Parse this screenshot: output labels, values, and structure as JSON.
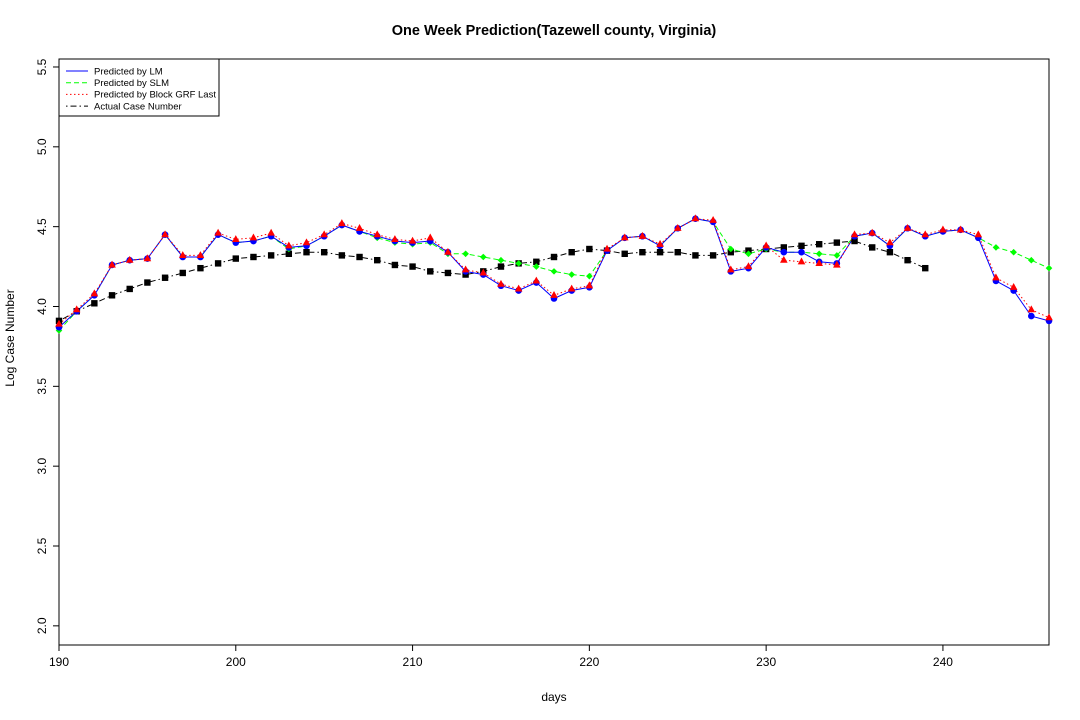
{
  "chart_data": {
    "type": "line",
    "title": "One Week Prediction(Tazewell county, Virginia)",
    "xlabel": "days",
    "ylabel": "Log Case Number",
    "xlim": [
      190,
      246
    ],
    "ylim": [
      1.88,
      5.55
    ],
    "xticks": [
      190,
      200,
      210,
      220,
      230,
      240
    ],
    "yticks": [
      2.0,
      2.5,
      3.0,
      3.5,
      4.0,
      4.5,
      5.0,
      5.5
    ],
    "grid": false,
    "legend_position": "top-left",
    "series": [
      {
        "name": "Predicted by LM",
        "color": "#0000ff",
        "line_style": "solid",
        "marker": "circle",
        "x": [
          190,
          191,
          192,
          193,
          194,
          195,
          196,
          197,
          198,
          199,
          200,
          201,
          202,
          203,
          204,
          205,
          206,
          207,
          208,
          209,
          210,
          211,
          212,
          213,
          214,
          215,
          216,
          217,
          218,
          219,
          220,
          221,
          222,
          223,
          224,
          225,
          226,
          227,
          228,
          229,
          230,
          231,
          232,
          233,
          234,
          235,
          236,
          237,
          238,
          239,
          240,
          241,
          242,
          243,
          244,
          245,
          246
        ],
        "y": [
          3.87,
          3.97,
          4.07,
          4.26,
          4.29,
          4.3,
          4.45,
          4.31,
          4.31,
          4.45,
          4.4,
          4.41,
          4.44,
          4.37,
          4.38,
          4.44,
          4.51,
          4.47,
          4.44,
          4.41,
          4.4,
          4.41,
          4.34,
          4.22,
          4.2,
          4.13,
          4.1,
          4.15,
          4.05,
          4.1,
          4.12,
          4.35,
          4.43,
          4.44,
          4.38,
          4.49,
          4.55,
          4.53,
          4.22,
          4.24,
          4.37,
          4.34,
          4.34,
          4.28,
          4.27,
          4.44,
          4.46,
          4.38,
          4.49,
          4.44,
          4.47,
          4.48,
          4.43,
          4.16,
          4.1,
          3.94,
          3.91
        ]
      },
      {
        "name": "Predicted by SLM",
        "color": "#00ff00",
        "line_style": "dashed",
        "marker": "diamond",
        "x": [
          190,
          191,
          192,
          193,
          194,
          195,
          196,
          197,
          198,
          199,
          200,
          201,
          202,
          203,
          204,
          205,
          206,
          207,
          208,
          209,
          210,
          211,
          212,
          213,
          214,
          215,
          216,
          217,
          218,
          219,
          220,
          221,
          222,
          223,
          224,
          225,
          226,
          227,
          228,
          229,
          230,
          231,
          232,
          233,
          234,
          235,
          236,
          237,
          238,
          239,
          240,
          241,
          242,
          243,
          244,
          245,
          246
        ],
        "y": [
          3.85,
          3.97,
          4.07,
          4.26,
          4.29,
          4.3,
          4.45,
          4.31,
          4.31,
          4.45,
          4.4,
          4.41,
          4.44,
          4.36,
          4.38,
          4.44,
          4.51,
          4.47,
          4.43,
          4.4,
          4.39,
          4.4,
          4.33,
          4.33,
          4.31,
          4.29,
          4.27,
          4.25,
          4.22,
          4.2,
          4.19,
          4.35,
          4.43,
          4.44,
          4.38,
          4.49,
          4.55,
          4.53,
          4.36,
          4.33,
          4.36,
          4.34,
          4.34,
          4.33,
          4.32,
          4.44,
          4.46,
          4.38,
          4.49,
          4.44,
          4.47,
          4.48,
          4.43,
          4.37,
          4.34,
          4.29,
          4.24
        ]
      },
      {
        "name": "Predicted by Block GRF Last",
        "color": "#ff0000",
        "line_style": "dotted",
        "marker": "triangle",
        "x": [
          190,
          191,
          192,
          193,
          194,
          195,
          196,
          197,
          198,
          199,
          200,
          201,
          202,
          203,
          204,
          205,
          206,
          207,
          208,
          209,
          210,
          211,
          212,
          213,
          214,
          215,
          216,
          217,
          218,
          219,
          220,
          221,
          222,
          223,
          224,
          225,
          226,
          227,
          228,
          229,
          230,
          231,
          232,
          233,
          234,
          235,
          236,
          237,
          238,
          239,
          240,
          241,
          242,
          243,
          244,
          245,
          246
        ],
        "y": [
          3.89,
          3.98,
          4.08,
          4.26,
          4.29,
          4.3,
          4.45,
          4.32,
          4.32,
          4.46,
          4.42,
          4.43,
          4.46,
          4.38,
          4.4,
          4.45,
          4.52,
          4.49,
          4.45,
          4.42,
          4.41,
          4.43,
          4.34,
          4.23,
          4.21,
          4.14,
          4.11,
          4.16,
          4.07,
          4.11,
          4.13,
          4.36,
          4.43,
          4.44,
          4.39,
          4.49,
          4.55,
          4.54,
          4.23,
          4.25,
          4.38,
          4.29,
          4.28,
          4.27,
          4.26,
          4.45,
          4.46,
          4.4,
          4.49,
          4.45,
          4.48,
          4.48,
          4.45,
          4.18,
          4.12,
          3.98,
          3.93
        ]
      },
      {
        "name": "Actual Case Number",
        "color": "#000000",
        "line_style": "dotdash",
        "marker": "square",
        "x": [
          190,
          191,
          192,
          193,
          194,
          195,
          196,
          197,
          198,
          199,
          200,
          201,
          202,
          203,
          204,
          205,
          206,
          207,
          208,
          209,
          210,
          211,
          212,
          213,
          214,
          215,
          216,
          217,
          218,
          219,
          220,
          221,
          222,
          223,
          224,
          225,
          226,
          227,
          228,
          229,
          230,
          231,
          232,
          233,
          234,
          235,
          236,
          237,
          238,
          239
        ],
        "y": [
          3.91,
          3.97,
          4.02,
          4.07,
          4.11,
          4.15,
          4.18,
          4.21,
          4.24,
          4.27,
          4.3,
          4.31,
          4.32,
          4.33,
          4.34,
          4.34,
          4.32,
          4.31,
          4.29,
          4.26,
          4.25,
          4.22,
          4.21,
          4.2,
          4.22,
          4.25,
          4.27,
          4.28,
          4.31,
          4.34,
          4.36,
          4.35,
          4.33,
          4.34,
          4.34,
          4.34,
          4.32,
          4.32,
          4.34,
          4.35,
          4.36,
          4.37,
          4.38,
          4.39,
          4.4,
          4.41,
          4.37,
          4.34,
          4.29,
          4.24
        ]
      }
    ]
  }
}
